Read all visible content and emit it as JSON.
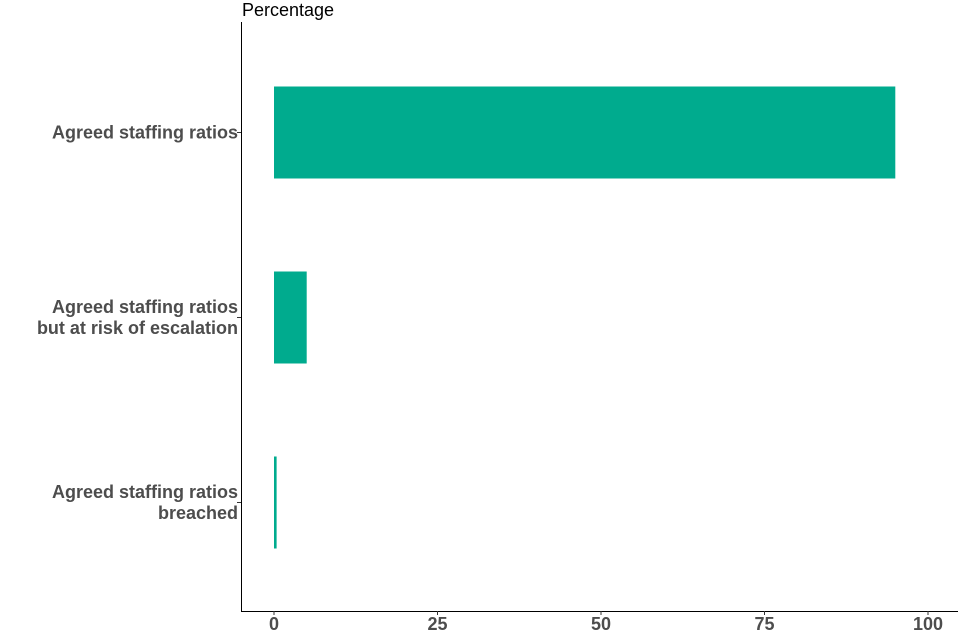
{
  "chart_data": {
    "type": "bar",
    "orientation": "horizontal",
    "title": "",
    "ylabel": "Percentage",
    "xlabel": "",
    "categories": [
      [
        "Agreed staffing ratios"
      ],
      [
        "Agreed staffing ratios",
        "but at risk of escalation"
      ],
      [
        "Agreed staffing ratios",
        "breached"
      ]
    ],
    "values": [
      95,
      5,
      0.4
    ],
    "xlim": [
      0,
      100
    ],
    "ticks": [
      "0",
      "25",
      "50",
      "75",
      "100"
    ],
    "tick_values": [
      0,
      25,
      50,
      75,
      100
    ],
    "grid": false,
    "colors": {
      "bar": "#00AB8E",
      "axis": "#000000",
      "label": "#4d4d4d"
    }
  }
}
